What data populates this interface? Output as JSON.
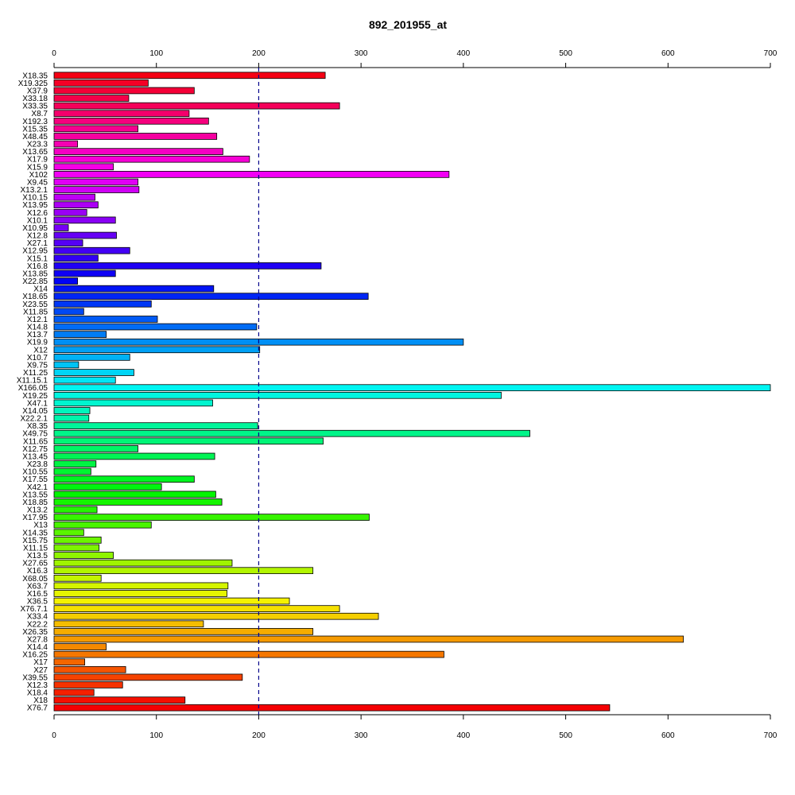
{
  "chart_data": {
    "type": "bar",
    "orientation": "horizontal",
    "title": "892_201955_at",
    "xlabel": "",
    "ylabel": "",
    "xlim": [
      0,
      700
    ],
    "x_ticks": [
      0,
      100,
      200,
      300,
      400,
      500,
      600,
      700
    ],
    "x_axis_positions": [
      "top",
      "bottom"
    ],
    "reference_line": {
      "x": 200,
      "style": "dashed",
      "color": "#00008B"
    },
    "color_scheme": "rainbow",
    "grid": false,
    "categories": [
      "X18.35",
      "X19.325",
      "X37.9",
      "X33.18",
      "X33.35",
      "X8.7",
      "X192.3",
      "X15.35",
      "X48.45",
      "X23.3",
      "X13.65",
      "X17.9",
      "X15.9",
      "X102",
      "X9.45",
      "X13.2.1",
      "X10.15",
      "X13.95",
      "X12.6",
      "X10.1",
      "X10.95",
      "X12.8",
      "X27.1",
      "X12.95",
      "X15.1",
      "X16.8",
      "X13.85",
      "X22.85",
      "X14",
      "X18.65",
      "X23.55",
      "X11.85",
      "X12.1",
      "X14.8",
      "X13.7",
      "X19.9",
      "X12",
      "X10.7",
      "X9.75",
      "X11.25",
      "X11.15.1",
      "X166.05",
      "X19.25",
      "X47.1",
      "X14.05",
      "X22.2.1",
      "X8.35",
      "X49.75",
      "X11.65",
      "X12.75",
      "X13.45",
      "X23.8",
      "X10.55",
      "X17.55",
      "X42.1",
      "X13.55",
      "X18.85",
      "X13.2",
      "X17.95",
      "X13",
      "X14.35",
      "X15.75",
      "X11.15",
      "X13.5",
      "X27.65",
      "X16.3",
      "X68.05",
      "X63.7",
      "X16.5",
      "X36.5",
      "X76.7.1",
      "X33.4",
      "X22.2",
      "X26.35",
      "X27.8",
      "X14.4",
      "X16.25",
      "X17",
      "X27",
      "X39.55",
      "X12.3",
      "X18.4",
      "X18",
      "X76.7"
    ],
    "values": [
      265,
      92,
      137,
      73,
      279,
      132,
      151,
      82,
      159,
      23,
      165,
      191,
      58,
      386,
      82,
      83,
      40,
      43,
      32,
      60,
      14,
      61,
      28,
      74,
      43,
      261,
      60,
      23,
      156,
      307,
      95,
      29,
      101,
      198,
      51,
      400,
      201,
      74,
      24,
      78,
      60,
      700,
      437,
      155,
      35,
      34,
      199,
      465,
      263,
      82,
      157,
      41,
      36,
      137,
      105,
      158,
      164,
      42,
      308,
      95,
      29,
      46,
      44,
      58,
      174,
      253,
      46,
      170,
      169,
      230,
      279,
      317,
      146,
      253,
      615,
      51,
      381,
      30,
      70,
      184,
      67,
      39,
      128,
      543
    ]
  }
}
